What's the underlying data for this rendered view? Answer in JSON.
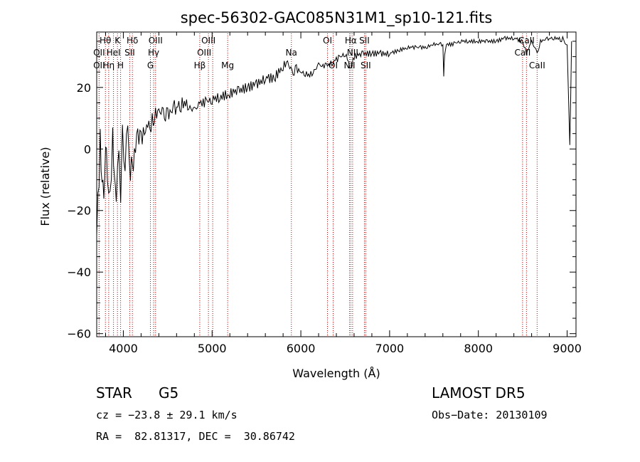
{
  "chart_data": {
    "type": "line",
    "title": "spec-56302-GAC085N31M1_sp10-121.fits",
    "xlabel": "Wavelength (Å)",
    "ylabel": "Flux (relative)",
    "xlim": [
      3700,
      9100
    ],
    "ylim": [
      -61,
      38
    ],
    "x_ticks": [
      4000,
      5000,
      6000,
      7000,
      8000,
      9000
    ],
    "y_ticks": [
      -60,
      -40,
      -20,
      0,
      20
    ],
    "grid": false,
    "line_color": "#000000",
    "marker_color": "#cc0000",
    "series": [
      {
        "x": [
          3700,
          3740,
          3760,
          3780,
          3800,
          3820,
          3850,
          3880,
          3900,
          3920,
          3950,
          3970,
          3990,
          4020,
          4050,
          4080,
          4100,
          4150,
          4200,
          4250,
          4300,
          4350,
          4400,
          4450,
          4500,
          4600,
          4700,
          4800,
          4861,
          4900,
          5000,
          5100,
          5200,
          5300,
          5400,
          5500,
          5600,
          5700,
          5800,
          5850,
          5900,
          5950,
          6000,
          6100,
          6200,
          6300,
          6400,
          6500,
          6563,
          6600,
          6700,
          6800,
          6900,
          7000,
          7100,
          7200,
          7300,
          7400,
          7500,
          7600,
          7610,
          7620,
          7640,
          7700,
          7800,
          7900,
          8000,
          8100,
          8200,
          8300,
          8400,
          8500,
          8542,
          8600,
          8662,
          8700,
          8800,
          8900,
          8950,
          9000,
          9030,
          9050
        ],
        "y": [
          -28,
          2,
          -8,
          -15,
          5,
          -12,
          -16,
          3,
          -8,
          -14,
          -5,
          -17,
          4,
          -3,
          6,
          -6,
          -8,
          5,
          3,
          7,
          7,
          11,
          12,
          12,
          11,
          14,
          15,
          12,
          15,
          15,
          16,
          17,
          18,
          19,
          20,
          21,
          23,
          23,
          27,
          28,
          25,
          26,
          25,
          24,
          27,
          27,
          29,
          31,
          26,
          30,
          31,
          31,
          31,
          31,
          32,
          33,
          33,
          33,
          34,
          34,
          24,
          30,
          34,
          34,
          35,
          35,
          35,
          35,
          35,
          36,
          36,
          35,
          31,
          35,
          31,
          35,
          36,
          36,
          35,
          34,
          0,
          35
        ]
      }
    ],
    "lines": [
      {
        "label": "Hθ",
        "x": 3798,
        "row": 0,
        "dx": 0
      },
      {
        "label": "OII",
        "x": 3727,
        "row": 1,
        "dx": 0
      },
      {
        "label": "OII",
        "x": 3727,
        "row": 2,
        "dx": 0
      },
      {
        "label": "Hη",
        "x": 3835,
        "row": 2,
        "dx": 0
      },
      {
        "label": "HeI",
        "x": 3889,
        "row": 1,
        "dx": 0
      },
      {
        "label": "K",
        "x": 3934,
        "row": 0,
        "dx": 0
      },
      {
        "label": "H",
        "x": 3969,
        "row": 2,
        "dx": 0
      },
      {
        "label": "SII",
        "x": 4072,
        "row": 1,
        "dx": 0
      },
      {
        "label": "Hδ",
        "x": 4102,
        "row": 0,
        "dx": 0
      },
      {
        "label": "Hγ",
        "x": 4341,
        "row": 1,
        "dx": 0
      },
      {
        "label": "G",
        "x": 4305,
        "row": 2,
        "dx": 0
      },
      {
        "label": "OIII",
        "x": 4363,
        "row": 0,
        "dx": 0
      },
      {
        "label": "Hβ",
        "x": 4861,
        "row": 2,
        "dx": 0
      },
      {
        "label": "OIII",
        "x": 4959,
        "row": 0,
        "dx": 0
      },
      {
        "label": "OIII",
        "x": 5007,
        "row": 1,
        "dx": -12
      },
      {
        "label": "Mg",
        "x": 5175,
        "row": 2,
        "dx": 0
      },
      {
        "label": "Na",
        "x": 5893,
        "row": 1,
        "dx": 0
      },
      {
        "label": "OI",
        "x": 6300,
        "row": 0,
        "dx": 0
      },
      {
        "label": "OI",
        "x": 6364,
        "row": 2,
        "dx": 0
      },
      {
        "label": "NII",
        "x": 6548,
        "row": 2,
        "dx": 0
      },
      {
        "label": "Hα",
        "x": 6563,
        "row": 0,
        "dx": 0
      },
      {
        "label": "NII",
        "x": 6583,
        "row": 1,
        "dx": 0
      },
      {
        "label": "SII",
        "x": 6716,
        "row": 0,
        "dx": 0
      },
      {
        "label": "SII",
        "x": 6731,
        "row": 2,
        "dx": 0
      },
      {
        "label": "CaII",
        "x": 8498,
        "row": 1,
        "dx": 0
      },
      {
        "label": "CaII",
        "x": 8542,
        "row": 0,
        "dx": 0
      },
      {
        "label": "CaII",
        "x": 8662,
        "row": 2,
        "dx": 0
      }
    ]
  },
  "info": {
    "class_label": "STAR",
    "subclass": "G5",
    "survey": "LAMOST DR5",
    "cz": "cz = −23.8 ± 29.1 km/s",
    "obs_date": "Obs−Date: 20130109",
    "radec": "RA =  82.81317, DEC =  30.86742"
  }
}
